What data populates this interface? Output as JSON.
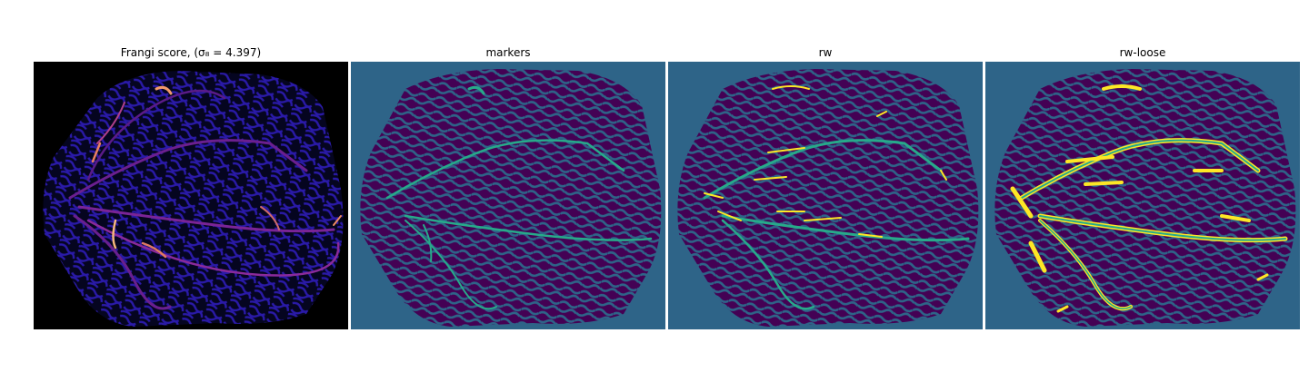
{
  "figure": {
    "panels": [
      {
        "title": "Frangi score, (σ₈ = 4.397)",
        "image": "frangi-vesselness-map",
        "colormap": "magma"
      },
      {
        "title": "markers",
        "image": "marker-label-map",
        "colormap": "viridis"
      },
      {
        "title": "rw",
        "image": "random-walker-segmentation",
        "colormap": "viridis"
      },
      {
        "title": "rw-loose",
        "image": "random-walker-loose-segmentation",
        "colormap": "viridis"
      }
    ]
  },
  "colors": {
    "magma_background": "#000000",
    "magma_low": "#1f12a8",
    "magma_mid": "#8c2a9c",
    "magma_high": "#f8a86a",
    "viridis_background": "#2e6488",
    "viridis_region": "#440154",
    "viridis_vessel": "#27aa8a",
    "viridis_detected": "#fde725"
  }
}
